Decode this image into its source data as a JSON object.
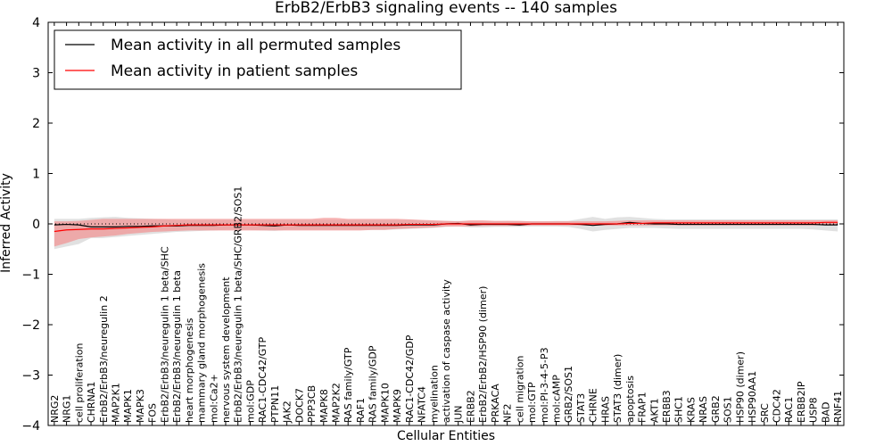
{
  "chart_data": {
    "type": "line",
    "title": "ErbB2/ErbB3 signaling events -- 140 samples",
    "xlabel": "Cellular Entities",
    "ylabel": "Inferred Activity",
    "ylim": [
      -4,
      4
    ],
    "yticks": [
      "4",
      "3",
      "2",
      "1",
      "0",
      "−1",
      "−2",
      "−3",
      "−4"
    ],
    "legend_position": "top-left",
    "colors": {
      "permuted": "#000000",
      "patient": "#ff0000",
      "patient_band": "#f28a8a",
      "permuted_band": "#c8c8c8"
    },
    "categories": [
      "NRG2",
      "NRG1",
      "cell proliferation",
      "CHRNA1",
      "ErbB2/ErbB3/neuregulin 2",
      "MAP2K1",
      "MAPK1",
      "MAPK3",
      "FOS",
      "ErbB2/ErbB3/neuregulin 1 beta/SHC",
      "ErbB2/ErbB3/neuregulin 1 beta",
      "heart morphogenesis",
      "mammary gland morphogenesis",
      "mol:Ca2+",
      "nervous system development",
      "ErbB2/ErbB3/neuregulin 1 beta/SHC/GRB2/SOS1",
      "mol:GDP",
      "RAC1-CDC42/GTP",
      "PTPN11",
      "JAK2",
      "DOCK7",
      "PPP3CB",
      "MAPK8",
      "MAP2K2",
      "RAS family/GTP",
      "RAF1",
      "RAS family/GDP",
      "MAPK10",
      "MAPK9",
      "RAC1-CDC42/GDP",
      "NFATC4",
      "myelination",
      "activation of caspase activity",
      "JUN",
      "ERBB2",
      "ErbB2/ErbB2/HSP90 (dimer)",
      "PRKACA",
      "NF2",
      "cell migration",
      "mol:GTP",
      "mol:PI-3-4-5-P3",
      "mol:cAMP",
      "GRB2/SOS1",
      "STAT3",
      "CHRNE",
      "HRAS",
      "STAT3 (dimer)",
      "apoptosis",
      "FRAP1",
      "AKT1",
      "ERBB3",
      "SHC1",
      "KRAS",
      "NRAS",
      "GRB2",
      "SOS1",
      "HSP90 (dimer)",
      "HSP90AA1",
      "SRC",
      "CDC42",
      "RAC1",
      "ERBB2IP",
      "USP8",
      "BAD",
      "RNF41"
    ],
    "series": [
      {
        "name": "Mean activity in all permuted samples",
        "values": [
          -0.02,
          -0.01,
          -0.02,
          -0.06,
          -0.06,
          -0.06,
          -0.05,
          -0.05,
          -0.04,
          -0.04,
          -0.04,
          -0.03,
          -0.03,
          -0.03,
          -0.02,
          -0.02,
          -0.02,
          -0.03,
          -0.04,
          -0.02,
          -0.03,
          -0.03,
          -0.03,
          -0.03,
          -0.03,
          -0.03,
          -0.03,
          -0.03,
          -0.03,
          -0.02,
          -0.02,
          -0.02,
          0.0,
          0.01,
          -0.02,
          -0.01,
          -0.01,
          -0.01,
          -0.02,
          0.0,
          0.0,
          0.0,
          0.0,
          -0.01,
          -0.03,
          -0.01,
          0.0,
          0.03,
          0.01,
          0.0,
          0.0,
          -0.01,
          -0.01,
          -0.01,
          -0.01,
          -0.01,
          -0.01,
          -0.01,
          -0.01,
          -0.01,
          -0.01,
          -0.01,
          -0.01,
          -0.02,
          -0.02
        ],
        "lower": [
          -0.5,
          -0.45,
          -0.4,
          -0.28,
          -0.28,
          -0.26,
          -0.24,
          -0.22,
          -0.2,
          -0.18,
          -0.16,
          -0.15,
          -0.14,
          -0.13,
          -0.12,
          -0.12,
          -0.12,
          -0.13,
          -0.14,
          -0.12,
          -0.12,
          -0.12,
          -0.12,
          -0.12,
          -0.12,
          -0.12,
          -0.12,
          -0.12,
          -0.11,
          -0.1,
          -0.09,
          -0.08,
          -0.06,
          -0.05,
          -0.07,
          -0.07,
          -0.06,
          -0.06,
          -0.06,
          -0.05,
          -0.05,
          -0.05,
          -0.06,
          -0.1,
          -0.15,
          -0.12,
          -0.1,
          -0.08,
          -0.08,
          -0.08,
          -0.09,
          -0.1,
          -0.1,
          -0.1,
          -0.1,
          -0.1,
          -0.1,
          -0.1,
          -0.1,
          -0.1,
          -0.1,
          -0.1,
          -0.11,
          -0.13,
          -0.15
        ],
        "upper": [
          0.1,
          0.1,
          0.1,
          0.12,
          0.13,
          0.14,
          0.12,
          0.11,
          0.1,
          0.09,
          0.08,
          0.08,
          0.08,
          0.08,
          0.08,
          0.08,
          0.08,
          0.08,
          0.08,
          0.08,
          0.08,
          0.08,
          0.08,
          0.08,
          0.08,
          0.08,
          0.08,
          0.08,
          0.08,
          0.08,
          0.07,
          0.06,
          0.06,
          0.06,
          0.05,
          0.05,
          0.05,
          0.06,
          0.05,
          0.05,
          0.05,
          0.06,
          0.06,
          0.1,
          0.14,
          0.1,
          0.13,
          0.14,
          0.12,
          0.1,
          0.09,
          0.09,
          0.09,
          0.09,
          0.09,
          0.09,
          0.09,
          0.09,
          0.09,
          0.09,
          0.09,
          0.09,
          0.09,
          0.09,
          0.09
        ]
      },
      {
        "name": "Mean activity in patient samples",
        "values": [
          -0.15,
          -0.12,
          -0.11,
          -0.1,
          -0.1,
          -0.09,
          -0.08,
          -0.07,
          -0.06,
          -0.04,
          -0.03,
          -0.02,
          -0.02,
          -0.02,
          -0.02,
          -0.02,
          -0.02,
          -0.02,
          -0.02,
          -0.02,
          -0.02,
          -0.02,
          -0.02,
          -0.02,
          -0.02,
          -0.02,
          -0.02,
          -0.02,
          -0.02,
          -0.01,
          -0.01,
          -0.01,
          0.0,
          0.0,
          0.0,
          0.0,
          0.0,
          0.0,
          0.0,
          0.0,
          0.0,
          0.0,
          0.0,
          0.0,
          0.0,
          0.0,
          0.0,
          0.01,
          0.01,
          0.02,
          0.02,
          0.02,
          0.02,
          0.02,
          0.02,
          0.02,
          0.02,
          0.02,
          0.02,
          0.02,
          0.02,
          0.02,
          0.02,
          0.03,
          0.03
        ],
        "lower": [
          -0.45,
          -0.38,
          -0.3,
          -0.27,
          -0.25,
          -0.23,
          -0.2,
          -0.18,
          -0.16,
          -0.15,
          -0.14,
          -0.13,
          -0.13,
          -0.13,
          -0.13,
          -0.13,
          -0.13,
          -0.13,
          -0.13,
          -0.13,
          -0.13,
          -0.13,
          -0.13,
          -0.13,
          -0.13,
          -0.13,
          -0.12,
          -0.12,
          -0.1,
          -0.09,
          -0.08,
          -0.07,
          -0.05,
          -0.05,
          -0.05,
          -0.04,
          -0.04,
          -0.04,
          -0.04,
          -0.03,
          -0.03,
          -0.03,
          -0.03,
          -0.03,
          -0.03,
          -0.03,
          -0.03,
          -0.03,
          -0.03,
          -0.03,
          -0.03,
          -0.03,
          -0.03,
          -0.03,
          -0.03,
          -0.03,
          -0.03,
          -0.03,
          -0.03,
          -0.03,
          -0.03,
          -0.03,
          -0.03,
          -0.02,
          -0.02
        ],
        "upper": [
          0.05,
          0.05,
          0.06,
          0.08,
          0.1,
          0.1,
          0.1,
          0.1,
          0.1,
          0.1,
          0.1,
          0.1,
          0.1,
          0.1,
          0.1,
          0.1,
          0.1,
          0.1,
          0.1,
          0.1,
          0.1,
          0.1,
          0.12,
          0.12,
          0.1,
          0.1,
          0.1,
          0.1,
          0.1,
          0.09,
          0.08,
          0.07,
          0.06,
          0.05,
          0.07,
          0.07,
          0.06,
          0.06,
          0.06,
          0.05,
          0.05,
          0.05,
          0.05,
          0.05,
          0.05,
          0.05,
          0.06,
          0.07,
          0.07,
          0.07,
          0.07,
          0.07,
          0.07,
          0.07,
          0.07,
          0.07,
          0.07,
          0.07,
          0.07,
          0.07,
          0.07,
          0.07,
          0.07,
          0.07,
          0.07
        ]
      }
    ]
  }
}
